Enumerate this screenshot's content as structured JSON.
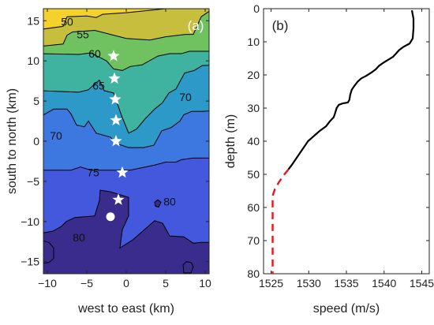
{
  "chart_data": [
    {
      "type": "contour",
      "panel_label": "(a)",
      "xlabel": "west to east (km)",
      "ylabel": "south to north (km)",
      "xlim": [
        -10.5,
        10.5
      ],
      "ylim": [
        -16.5,
        16.5
      ],
      "xticks": [
        -10,
        -5,
        0,
        5,
        10
      ],
      "yticks": [
        -15,
        -10,
        -5,
        0,
        5,
        10,
        15
      ],
      "xtick_labels": [
        "−10",
        "−5",
        "0",
        "5",
        "10"
      ],
      "ytick_labels": [
        "−15",
        "−10",
        "−5",
        "0",
        "5",
        "10",
        "15"
      ],
      "contour_levels": [
        50,
        55,
        60,
        65,
        70,
        75,
        80
      ],
      "contour_labels": [
        {
          "text": "50",
          "x": -7.5,
          "y": 14.9
        },
        {
          "text": "55",
          "x": -5.5,
          "y": 13.3
        },
        {
          "text": "60",
          "x": -4.0,
          "y": 10.9
        },
        {
          "text": "65",
          "x": -3.5,
          "y": 6.9
        },
        {
          "text": "70",
          "x": 7.5,
          "y": 5.5
        },
        {
          "text": "70",
          "x": -8.9,
          "y": 0.7
        },
        {
          "text": "75",
          "x": -4.2,
          "y": -3.9
        },
        {
          "text": "80",
          "x": 5.5,
          "y": -7.5
        },
        {
          "text": "80",
          "x": -6.0,
          "y": -12.0
        }
      ],
      "stars": [
        {
          "x": -1.6,
          "y": 10.6
        },
        {
          "x": -1.5,
          "y": 7.8
        },
        {
          "x": -1.4,
          "y": 5.2
        },
        {
          "x": -1.3,
          "y": 2.6
        },
        {
          "x": -1.3,
          "y": 0.0
        },
        {
          "x": -0.5,
          "y": -3.9
        },
        {
          "x": -1.0,
          "y": -7.3
        }
      ],
      "circle": {
        "x": -2.0,
        "y": -9.4
      },
      "colors": [
        "#F5D12B",
        "#C6BE3C",
        "#6FC25F",
        "#3FB3A0",
        "#2C99C9",
        "#3C78E0",
        "#4458DE",
        "#3A2C8C"
      ]
    },
    {
      "type": "line",
      "panel_label": "(b)",
      "xlabel": "speed (m/s)",
      "ylabel": "depth (m)",
      "xlim": [
        1524,
        1546
      ],
      "ylim": [
        0,
        80
      ],
      "y_reversed": true,
      "xticks": [
        1525,
        1530,
        1535,
        1540,
        1545
      ],
      "yticks": [
        0,
        10,
        20,
        30,
        40,
        50,
        60,
        70,
        80
      ],
      "series": [
        {
          "style": "solid",
          "color": "#000000",
          "x": [
            1543.7,
            1543.9,
            1543.9,
            1543.8,
            1543.4,
            1542.6,
            1542.0,
            1541.6,
            1541.2,
            1540.5,
            1539.9,
            1539.3,
            1538.9,
            1538.3,
            1537.6,
            1537.0,
            1536.5,
            1536.0,
            1535.7,
            1535.5,
            1535.4,
            1535.2,
            1534.5,
            1534.0,
            1533.7,
            1533.5,
            1533.3,
            1532.8,
            1532.3,
            1531.4,
            1530.9,
            1530.4,
            1529.9,
            1529.6,
            1529.0,
            1528.4,
            1527.8,
            1527.3
          ],
          "y": [
            0.5,
            3,
            6,
            9,
            10.5,
            11.5,
            12.5,
            13.5,
            14.5,
            15.5,
            16.3,
            17.3,
            18.3,
            19.3,
            20.3,
            21.0,
            22.0,
            23.5,
            24.5,
            26.0,
            27.5,
            28.3,
            28.6,
            29.0,
            30.0,
            31.5,
            32.8,
            34.0,
            35.5,
            37.0,
            38.0,
            39.0,
            40.0,
            41.0,
            43.0,
            45.0,
            47.0,
            48.5
          ]
        },
        {
          "style": "dashed",
          "color": "#E8141B",
          "x": [
            1527.3,
            1526.6,
            1526.0,
            1525.5,
            1525.2,
            1525.2,
            1525.2
          ],
          "y": [
            48.5,
            50.5,
            52.5,
            54.5,
            56.5,
            68,
            80
          ]
        }
      ]
    }
  ]
}
